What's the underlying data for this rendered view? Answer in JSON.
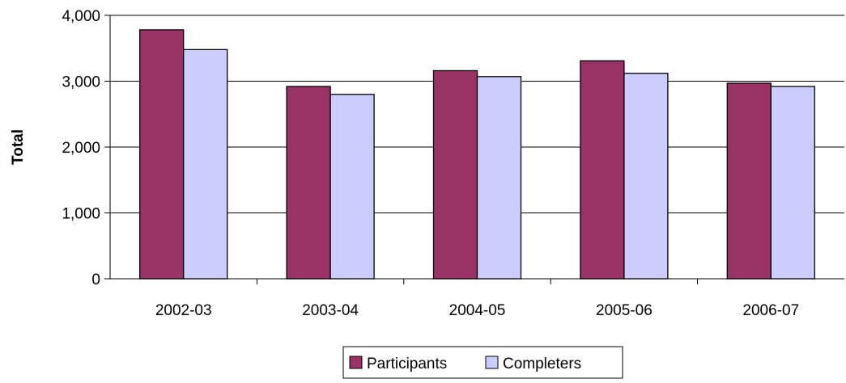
{
  "chart_data": {
    "type": "bar",
    "categories": [
      "2002-03",
      "2003-04",
      "2004-05",
      "2005-06",
      "2006-07"
    ],
    "series": [
      {
        "name": "Participants",
        "values": [
          3780,
          2920,
          3160,
          3310,
          2970
        ],
        "color": "#993366"
      },
      {
        "name": "Completers",
        "values": [
          3480,
          2800,
          3070,
          3120,
          2920
        ],
        "color": "#CCCCFF"
      }
    ],
    "ylabel": "Total",
    "xlabel": "",
    "ylim": [
      0,
      4000
    ],
    "yticks": [
      0,
      1000,
      2000,
      3000,
      4000
    ],
    "ytick_labels": [
      "0",
      "1,000",
      "2,000",
      "3,000",
      "4,000"
    ],
    "grid": true,
    "legend_position": "bottom"
  }
}
